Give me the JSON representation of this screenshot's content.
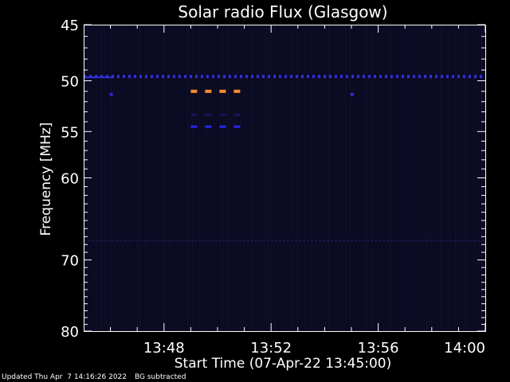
{
  "chart_data": {
    "type": "heatmap",
    "title": "Solar radio Flux (Glasgow)",
    "xlabel": "Start Time (07-Apr-22 13:45:00)",
    "ylabel": "Frequency [MHz]",
    "xlim": [
      "13:45",
      "14:00"
    ],
    "ylim": [
      45,
      80
    ],
    "y_log_scale": true,
    "x_ticks": [
      "13:48",
      "13:52",
      "13:56",
      "14:00"
    ],
    "y_ticks": [
      45,
      50,
      55,
      60,
      70,
      80
    ],
    "background_color": "#000000",
    "plot_background_color": "#0a0a22",
    "features": [
      {
        "label": "steady emission line",
        "freq_mhz": 49.6,
        "t_start": "13:45",
        "t_end": "14:00",
        "color": "#3030e0"
      },
      {
        "label": "dashed emission",
        "freq_mhz": 51.0,
        "t_start": "13:49",
        "t_end": "13:51",
        "color": "#ff8c30"
      },
      {
        "label": "dashed emission",
        "freq_mhz": 53.3,
        "t_start": "13:49",
        "t_end": "13:51",
        "color": "#151560"
      },
      {
        "label": "dashed emission",
        "freq_mhz": 54.5,
        "t_start": "13:49",
        "t_end": "13:51",
        "color": "#2828e8"
      },
      {
        "label": "faint band",
        "freq_mhz": 67.5,
        "t_start": "13:45",
        "t_end": "14:00",
        "color": "#181848"
      },
      {
        "label": "spot",
        "freq_mhz": 51.3,
        "t_start": "13:46",
        "t_end": "13:46",
        "color": "#2a2ad0"
      },
      {
        "label": "spot",
        "freq_mhz": 51.3,
        "t_start": "13:55",
        "t_end": "13:55",
        "color": "#2a2ad0"
      }
    ]
  },
  "footer": {
    "updated": "Updated Thu Apr  7 14:16:26 2022",
    "bg_note": "BG subtracted"
  }
}
